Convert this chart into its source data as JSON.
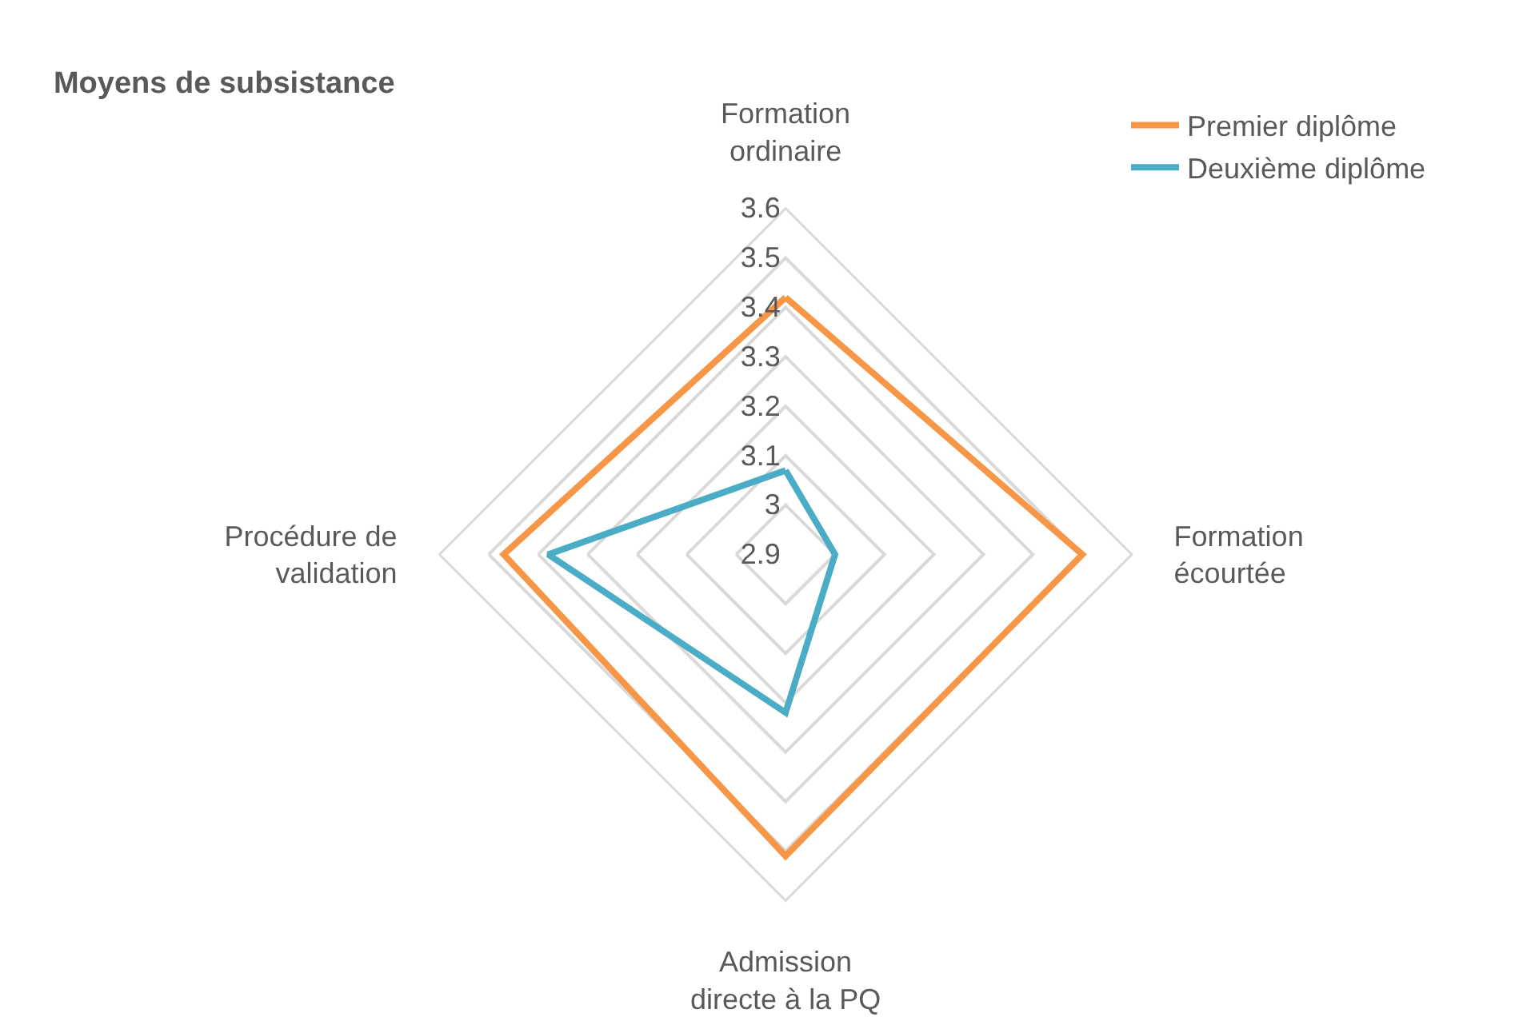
{
  "chart_data": {
    "type": "radar",
    "title": "Moyens de subsistance",
    "categories": [
      "Formation ordinaire",
      "Formation écourtée",
      "Admission directe à la PQ",
      "Procédure de validation"
    ],
    "series": [
      {
        "name": "Premier diplôme",
        "color": "#f79646",
        "values": [
          3.42,
          3.5,
          3.51,
          3.47
        ]
      },
      {
        "name": "Deuxième diplôme",
        "color": "#4bacc6",
        "values": [
          3.07,
          3.0,
          3.22,
          3.38
        ]
      }
    ],
    "ylim": [
      2.9,
      3.6
    ],
    "yticks": [
      2.9,
      3,
      3.1,
      3.2,
      3.3,
      3.4,
      3.5,
      3.6
    ],
    "grid": true,
    "legend": "top right",
    "marker": "none",
    "line_style": "solid"
  }
}
